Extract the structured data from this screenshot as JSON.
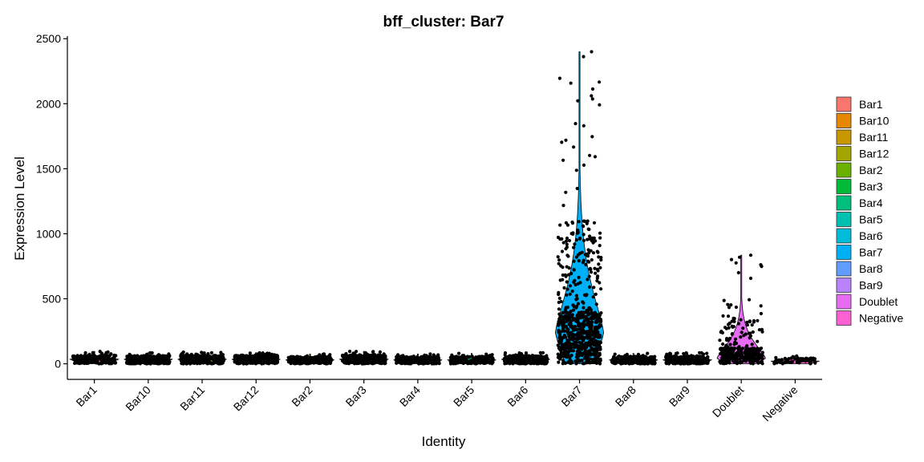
{
  "chart_data": {
    "type": "violin",
    "title": "bff_cluster: Bar7",
    "xlabel": "Identity",
    "ylabel": "Expression Level",
    "ylim": [
      -120,
      2520
    ],
    "yticks": [
      0,
      500,
      1000,
      1500,
      2000,
      2500
    ],
    "categories": [
      "Bar1",
      "Bar10",
      "Bar11",
      "Bar12",
      "Bar2",
      "Bar3",
      "Bar4",
      "Bar5",
      "Bar6",
      "Bar7",
      "Bar8",
      "Bar9",
      "Doublet",
      "Negative"
    ],
    "colors": [
      "#F8766D",
      "#E58700",
      "#C99800",
      "#A3A500",
      "#6BB100",
      "#00BA38",
      "#00BF7D",
      "#00C0AF",
      "#00BCD8",
      "#00B0F6",
      "#619CFF",
      "#B983FF",
      "#E76BF3",
      "#FD61D1"
    ],
    "legend": {
      "position": "right",
      "entries": [
        "Bar1",
        "Bar10",
        "Bar11",
        "Bar12",
        "Bar2",
        "Bar3",
        "Bar4",
        "Bar5",
        "Bar6",
        "Bar7",
        "Bar8",
        "Bar9",
        "Doublet",
        "Negative"
      ]
    },
    "series": [
      {
        "name": "Bar1",
        "median": 35,
        "q3": 50,
        "max": 95,
        "points": 220
      },
      {
        "name": "Bar10",
        "median": 35,
        "q3": 50,
        "max": 85,
        "points": 320
      },
      {
        "name": "Bar11",
        "median": 35,
        "q3": 50,
        "max": 90,
        "points": 320
      },
      {
        "name": "Bar12",
        "median": 35,
        "q3": 55,
        "max": 85,
        "points": 320
      },
      {
        "name": "Bar2",
        "median": 30,
        "q3": 45,
        "max": 75,
        "points": 220
      },
      {
        "name": "Bar3",
        "median": 35,
        "q3": 55,
        "max": 95,
        "points": 320
      },
      {
        "name": "Bar4",
        "median": 30,
        "q3": 45,
        "max": 75,
        "points": 300
      },
      {
        "name": "Bar5",
        "median": 30,
        "q3": 45,
        "max": 80,
        "points": 200
      },
      {
        "name": "Bar6",
        "median": 35,
        "q3": 50,
        "max": 85,
        "points": 300
      },
      {
        "name": "Bar7",
        "median": 230,
        "q3": 400,
        "max": 2400,
        "points": 700
      },
      {
        "name": "Bar8",
        "median": 30,
        "q3": 45,
        "max": 80,
        "points": 320
      },
      {
        "name": "Bar9",
        "median": 30,
        "q3": 45,
        "max": 85,
        "points": 320
      },
      {
        "name": "Doublet",
        "median": 40,
        "q3": 120,
        "max": 835,
        "points": 330
      },
      {
        "name": "Negative",
        "median": 20,
        "q3": 35,
        "max": 60,
        "points": 70
      }
    ]
  }
}
